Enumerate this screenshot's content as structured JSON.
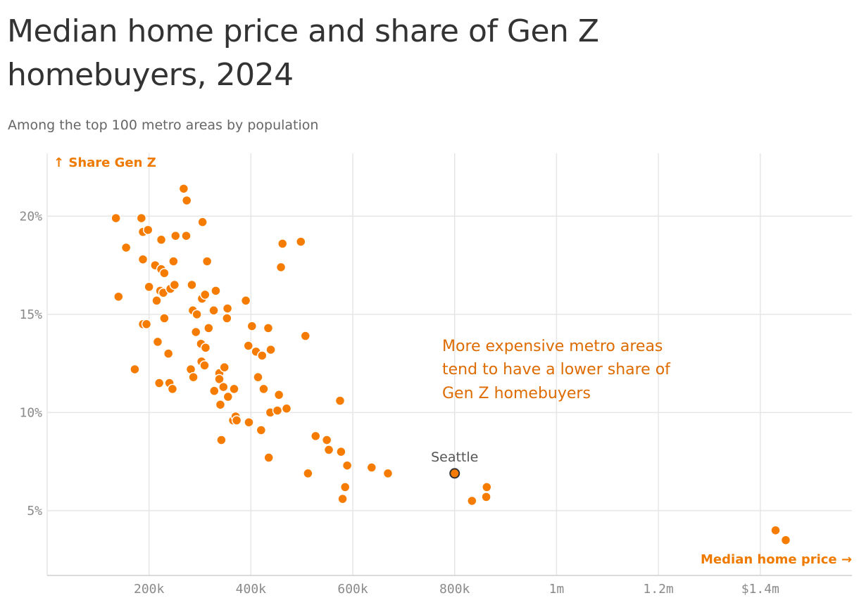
{
  "chart_data": {
    "type": "scatter",
    "title": "Median home price and share of Gen Z homebuyers, 2024",
    "subtitle": "Among the top 100 metro areas by population",
    "xlabel": "Median home price →",
    "ylabel": "↑ Share Gen Z",
    "annotation": [
      "More expensive metro areas",
      "tend to have a lower share of",
      "Gen Z homebuyers"
    ],
    "highlight": {
      "label": "Seattle",
      "x": 800000,
      "y": 6.9
    },
    "x_ticks": [
      {
        "value": 200000,
        "label": "200k"
      },
      {
        "value": 400000,
        "label": "400k"
      },
      {
        "value": 600000,
        "label": "600k"
      },
      {
        "value": 800000,
        "label": "800k"
      },
      {
        "value": 1000000,
        "label": "1m"
      },
      {
        "value": 1200000,
        "label": "1.2m"
      },
      {
        "value": 1400000,
        "label": "$1.4m"
      }
    ],
    "y_ticks": [
      {
        "value": 5,
        "label": "5%"
      },
      {
        "value": 10,
        "label": "10%"
      },
      {
        "value": 15,
        "label": "15%"
      },
      {
        "value": 20,
        "label": "20%"
      }
    ],
    "xlim": [
      0,
      1580000
    ],
    "ylim": [
      1.7,
      23.2
    ],
    "grid": true,
    "colors": {
      "point": "#f57c00",
      "highlight_outline": "#333333",
      "annotation": "#dd6b00",
      "axis_title": "#ee7a00",
      "grid": "#e6e6e6"
    },
    "points": [
      [
        135000,
        19.9
      ],
      [
        140000,
        15.9
      ],
      [
        155000,
        18.4
      ],
      [
        172000,
        12.2
      ],
      [
        185000,
        19.9
      ],
      [
        188000,
        14.5
      ],
      [
        188000,
        17.8
      ],
      [
        188000,
        19.2
      ],
      [
        195000,
        14.5
      ],
      [
        198000,
        19.3
      ],
      [
        200000,
        16.4
      ],
      [
        212000,
        17.5
      ],
      [
        215000,
        15.7
      ],
      [
        217000,
        13.6
      ],
      [
        220000,
        11.5
      ],
      [
        222000,
        16.2
      ],
      [
        224000,
        18.8
      ],
      [
        224000,
        17.3
      ],
      [
        228000,
        16.1
      ],
      [
        230000,
        14.8
      ],
      [
        230000,
        17.1
      ],
      [
        238000,
        13.0
      ],
      [
        240000,
        11.5
      ],
      [
        242000,
        16.3
      ],
      [
        246000,
        11.2
      ],
      [
        248000,
        17.7
      ],
      [
        250000,
        16.5
      ],
      [
        252000,
        19.0
      ],
      [
        268000,
        21.4
      ],
      [
        273000,
        19.0
      ],
      [
        274000,
        20.8
      ],
      [
        282000,
        12.2
      ],
      [
        284000,
        16.5
      ],
      [
        286000,
        15.2
      ],
      [
        287000,
        11.8
      ],
      [
        292000,
        14.1
      ],
      [
        294000,
        15.0
      ],
      [
        302000,
        13.5
      ],
      [
        303000,
        12.6
      ],
      [
        304000,
        15.8
      ],
      [
        305000,
        19.7
      ],
      [
        309000,
        12.4
      ],
      [
        310000,
        16.0
      ],
      [
        311000,
        13.3
      ],
      [
        314000,
        17.7
      ],
      [
        317000,
        14.3
      ],
      [
        327000,
        15.2
      ],
      [
        328000,
        11.1
      ],
      [
        331000,
        16.2
      ],
      [
        338000,
        12.0
      ],
      [
        338000,
        11.7
      ],
      [
        340000,
        10.4
      ],
      [
        342000,
        8.6
      ],
      [
        346000,
        11.3
      ],
      [
        348000,
        12.3
      ],
      [
        353000,
        14.8
      ],
      [
        354000,
        15.3
      ],
      [
        355000,
        10.8
      ],
      [
        365000,
        9.6
      ],
      [
        367000,
        11.2
      ],
      [
        370000,
        9.8
      ],
      [
        372000,
        9.6
      ],
      [
        390000,
        15.7
      ],
      [
        395000,
        13.4
      ],
      [
        396000,
        9.5
      ],
      [
        402000,
        14.4
      ],
      [
        410000,
        13.1
      ],
      [
        414000,
        11.8
      ],
      [
        420000,
        9.1
      ],
      [
        422000,
        12.9
      ],
      [
        425000,
        11.2
      ],
      [
        434000,
        14.3
      ],
      [
        435000,
        7.7
      ],
      [
        438000,
        10.0
      ],
      [
        439000,
        13.2
      ],
      [
        452000,
        10.1
      ],
      [
        455000,
        10.9
      ],
      [
        459000,
        17.4
      ],
      [
        462000,
        18.6
      ],
      [
        470000,
        10.2
      ],
      [
        498000,
        18.7
      ],
      [
        507000,
        13.9
      ],
      [
        512000,
        6.9
      ],
      [
        527000,
        8.8
      ],
      [
        549000,
        8.6
      ],
      [
        553000,
        8.1
      ],
      [
        575000,
        10.6
      ],
      [
        577000,
        8.0
      ],
      [
        580000,
        5.6
      ],
      [
        585000,
        6.2
      ],
      [
        589000,
        7.3
      ],
      [
        637000,
        7.2
      ],
      [
        669000,
        6.9
      ],
      [
        834000,
        5.5
      ],
      [
        862000,
        5.7
      ],
      [
        863000,
        6.2
      ],
      [
        1430000,
        4.0
      ],
      [
        1450000,
        3.5
      ]
    ]
  }
}
